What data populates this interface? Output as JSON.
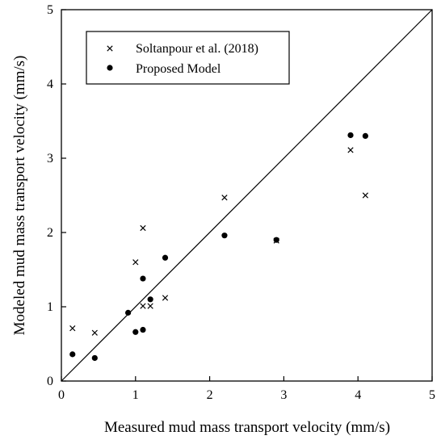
{
  "chart_data": {
    "type": "scatter",
    "xlabel": "Measured mud mass transport velocity (mm/s)",
    "ylabel": "Modeled mud mass transport velocity (mm/s)",
    "xlim": [
      0,
      5
    ],
    "ylim": [
      0,
      5
    ],
    "xticks": [
      "0",
      "1",
      "2",
      "3",
      "4",
      "5"
    ],
    "yticks": [
      "0",
      "1",
      "2",
      "3",
      "4",
      "5"
    ],
    "grid": false,
    "legend_position": "top-left",
    "reference_line": {
      "type": "y=x",
      "from": [
        0,
        0
      ],
      "to": [
        5,
        5
      ]
    },
    "series": [
      {
        "name": "Soltanpour et al. (2018)",
        "marker": "x",
        "color": "#000000",
        "points": [
          [
            0.15,
            0.71
          ],
          [
            0.45,
            0.65
          ],
          [
            1.0,
            1.6
          ],
          [
            1.1,
            2.06
          ],
          [
            1.1,
            1.01
          ],
          [
            1.2,
            1.01
          ],
          [
            1.4,
            1.12
          ],
          [
            2.2,
            2.47
          ],
          [
            2.9,
            1.89
          ],
          [
            3.9,
            3.11
          ],
          [
            4.1,
            2.5
          ]
        ]
      },
      {
        "name": "Proposed Model",
        "marker": "dot",
        "color": "#000000",
        "points": [
          [
            0.15,
            0.36
          ],
          [
            0.45,
            0.31
          ],
          [
            0.9,
            0.92
          ],
          [
            1.0,
            0.66
          ],
          [
            1.1,
            0.69
          ],
          [
            1.1,
            1.38
          ],
          [
            1.2,
            1.1
          ],
          [
            1.4,
            1.66
          ],
          [
            2.2,
            1.96
          ],
          [
            2.9,
            1.9
          ],
          [
            3.9,
            3.31
          ],
          [
            4.1,
            3.3
          ]
        ]
      }
    ]
  }
}
